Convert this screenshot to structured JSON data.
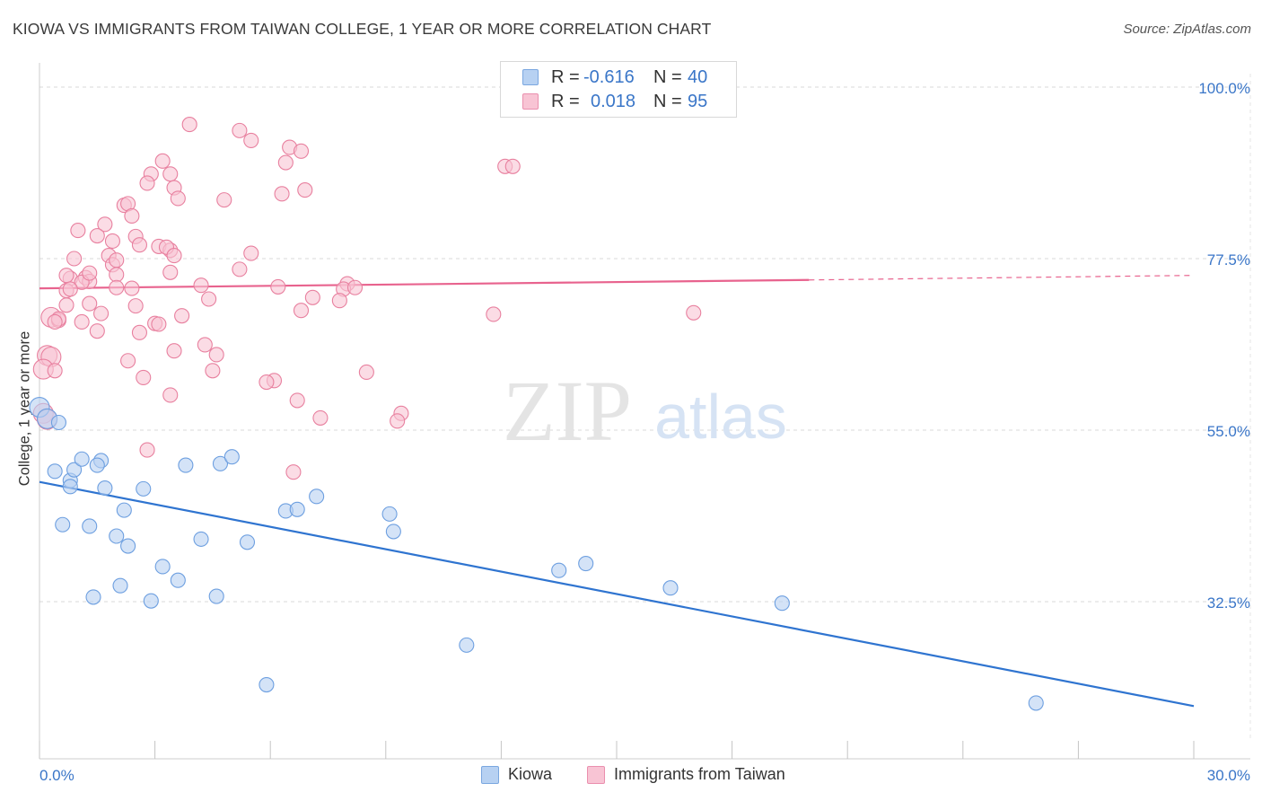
{
  "title": "KIOWA VS IMMIGRANTS FROM TAIWAN COLLEGE, 1 YEAR OR MORE CORRELATION CHART",
  "source": "Source: ZipAtlas.com",
  "watermark": {
    "zip": "ZIP",
    "atlas": "atlas"
  },
  "legend": {
    "kiowa": {
      "r_label": "R =",
      "r_value": "-0.616",
      "n_label": "N =",
      "n_value": "40"
    },
    "taiwan": {
      "r_label": "R =",
      "r_value": "0.018",
      "n_label": "N =",
      "n_value": "95"
    }
  },
  "colors": {
    "kiowa_fill": "#b7d1f2",
    "kiowa_stroke": "#6d9fe0",
    "kiowa_line": "#2f74d0",
    "taiwan_fill": "#f8c4d4",
    "taiwan_stroke": "#e8809f",
    "taiwan_line": "#e8638e",
    "tick_label": "#3a76c8",
    "grid": "#d9d9d9"
  },
  "chart_data": {
    "type": "scatter",
    "title": "KIOWA VS IMMIGRANTS FROM TAIWAN COLLEGE, 1 YEAR OR MORE CORRELATION CHART",
    "xlabel": "",
    "ylabel": "College, 1 year or more",
    "xlim": [
      0,
      30
    ],
    "ylim": [
      10,
      102
    ],
    "x_tick_labels": [
      "0.0%",
      "30.0%"
    ],
    "y_ticks": [
      32.5,
      55.0,
      77.5,
      100.0
    ],
    "y_tick_labels": [
      "32.5%",
      "55.0%",
      "77.5%",
      "100.0%"
    ],
    "grid": true,
    "legend_placement": "top-center",
    "series": [
      {
        "name": "Kiowa",
        "trend": {
          "x": [
            0.0,
            30.0
          ],
          "y": [
            48.2,
            18.8
          ],
          "extrapolate_to": null
        },
        "points": [
          [
            0.0,
            58.0
          ],
          [
            0.2,
            56.5
          ],
          [
            0.5,
            56.0
          ],
          [
            0.4,
            49.6
          ],
          [
            0.8,
            48.4
          ],
          [
            0.9,
            49.8
          ],
          [
            1.1,
            51.2
          ],
          [
            1.6,
            51.0
          ],
          [
            1.5,
            50.4
          ],
          [
            0.8,
            47.6
          ],
          [
            1.7,
            47.4
          ],
          [
            2.7,
            47.3
          ],
          [
            3.8,
            50.4
          ],
          [
            4.7,
            50.6
          ],
          [
            5.0,
            51.5
          ],
          [
            2.2,
            44.5
          ],
          [
            0.6,
            42.6
          ],
          [
            1.3,
            42.4
          ],
          [
            2.0,
            41.1
          ],
          [
            2.3,
            39.8
          ],
          [
            4.2,
            40.7
          ],
          [
            5.4,
            40.3
          ],
          [
            6.4,
            44.4
          ],
          [
            6.7,
            44.6
          ],
          [
            7.2,
            46.3
          ],
          [
            9.1,
            44.0
          ],
          [
            9.2,
            41.7
          ],
          [
            3.2,
            37.1
          ],
          [
            3.6,
            35.3
          ],
          [
            2.1,
            34.6
          ],
          [
            1.4,
            33.1
          ],
          [
            2.9,
            32.6
          ],
          [
            4.6,
            33.2
          ],
          [
            13.5,
            36.6
          ],
          [
            14.2,
            37.5
          ],
          [
            16.4,
            34.3
          ],
          [
            19.3,
            32.3
          ],
          [
            11.1,
            26.8
          ],
          [
            5.9,
            21.6
          ],
          [
            25.9,
            19.2
          ]
        ]
      },
      {
        "name": "Immigrants from Taiwan",
        "trend": {
          "x": [
            0.0,
            20.0
          ],
          "y": [
            73.6,
            74.7
          ],
          "extrapolate_to": [
            30.0,
            75.3
          ]
        },
        "points": [
          [
            3.9,
            95.1
          ],
          [
            5.2,
            94.3
          ],
          [
            6.5,
            92.1
          ],
          [
            6.8,
            91.6
          ],
          [
            3.2,
            90.3
          ],
          [
            6.4,
            90.1
          ],
          [
            12.1,
            89.6
          ],
          [
            12.3,
            89.6
          ],
          [
            2.9,
            88.6
          ],
          [
            3.4,
            88.6
          ],
          [
            2.8,
            87.4
          ],
          [
            3.5,
            86.8
          ],
          [
            6.3,
            86.0
          ],
          [
            6.9,
            86.5
          ],
          [
            3.6,
            85.4
          ],
          [
            4.8,
            85.2
          ],
          [
            2.2,
            84.5
          ],
          [
            2.3,
            84.7
          ],
          [
            2.4,
            83.1
          ],
          [
            1.7,
            82.0
          ],
          [
            1.0,
            81.2
          ],
          [
            1.5,
            80.5
          ],
          [
            2.5,
            80.4
          ],
          [
            1.9,
            79.8
          ],
          [
            2.6,
            79.3
          ],
          [
            3.1,
            79.1
          ],
          [
            3.4,
            78.6
          ],
          [
            3.3,
            79.0
          ],
          [
            3.5,
            77.9
          ],
          [
            5.5,
            78.2
          ],
          [
            1.8,
            77.9
          ],
          [
            0.9,
            77.5
          ],
          [
            1.9,
            76.7
          ],
          [
            2.0,
            77.3
          ],
          [
            3.4,
            75.7
          ],
          [
            5.2,
            76.1
          ],
          [
            0.8,
            74.9
          ],
          [
            1.2,
            75.0
          ],
          [
            0.7,
            75.3
          ],
          [
            1.3,
            74.5
          ],
          [
            1.1,
            74.4
          ],
          [
            1.3,
            75.6
          ],
          [
            2.0,
            75.4
          ],
          [
            4.2,
            74.0
          ],
          [
            2.0,
            73.7
          ],
          [
            2.4,
            73.6
          ],
          [
            0.7,
            73.3
          ],
          [
            0.8,
            73.5
          ],
          [
            6.2,
            73.8
          ],
          [
            8.0,
            74.2
          ],
          [
            7.9,
            73.5
          ],
          [
            8.2,
            73.7
          ],
          [
            4.4,
            72.2
          ],
          [
            7.1,
            72.4
          ],
          [
            7.8,
            72.0
          ],
          [
            1.3,
            71.6
          ],
          [
            0.7,
            71.4
          ],
          [
            2.5,
            71.3
          ],
          [
            6.8,
            70.7
          ],
          [
            11.8,
            70.2
          ],
          [
            17.0,
            70.4
          ],
          [
            1.6,
            70.3
          ],
          [
            3.7,
            70.0
          ],
          [
            0.3,
            69.8
          ],
          [
            0.5,
            69.4
          ],
          [
            0.5,
            69.6
          ],
          [
            0.4,
            69.2
          ],
          [
            1.1,
            69.2
          ],
          [
            3.0,
            69.0
          ],
          [
            3.1,
            68.9
          ],
          [
            1.5,
            68.0
          ],
          [
            2.6,
            67.8
          ],
          [
            4.3,
            66.2
          ],
          [
            3.5,
            65.4
          ],
          [
            4.6,
            64.9
          ],
          [
            0.2,
            64.8
          ],
          [
            0.3,
            64.6
          ],
          [
            2.3,
            64.1
          ],
          [
            0.1,
            63.0
          ],
          [
            0.4,
            62.8
          ],
          [
            4.5,
            62.8
          ],
          [
            8.5,
            62.6
          ],
          [
            2.7,
            61.9
          ],
          [
            6.1,
            61.5
          ],
          [
            5.9,
            61.3
          ],
          [
            3.4,
            59.6
          ],
          [
            6.7,
            58.9
          ],
          [
            9.4,
            57.2
          ],
          [
            7.3,
            56.6
          ],
          [
            9.3,
            56.2
          ],
          [
            0.1,
            57.2
          ],
          [
            0.2,
            56.4
          ],
          [
            2.8,
            52.4
          ],
          [
            6.6,
            49.5
          ],
          [
            5.5,
            93.0
          ]
        ]
      }
    ]
  },
  "bottom_legend": {
    "kiowa": "Kiowa",
    "taiwan": "Immigrants from Taiwan"
  }
}
